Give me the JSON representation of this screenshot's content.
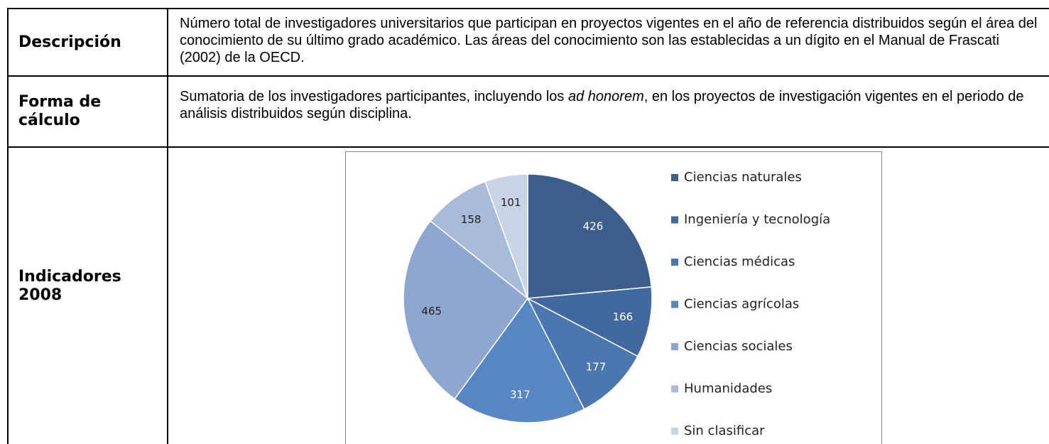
{
  "table": {
    "rows": [
      {
        "label": "Descripción",
        "text": "Número total de investigadores universitarios que participan en proyectos vigentes en el año de referencia distribuidos según el área del conocimiento de su último grado académico.  Las áreas del conocimiento son las establecidas a un dígito en el Manual de Frascati (2002) de la OECD."
      },
      {
        "label": "Forma de cálculo",
        "text": [
          "Sumatoria de los  investigadores participantes, incluyendo los ",
          "ad honorem",
          ", en los proyectos de investigación vigentes en el periodo de análisis distribuidos según disciplina."
        ]
      },
      {
        "label": "Indicadores 2008"
      }
    ]
  },
  "chart_data": {
    "type": "pie",
    "categories": [
      "Ciencias naturales",
      "Ingeniería y tecnología",
      "Ciencias médicas",
      "Ciencias agrícolas",
      "Ciencias sociales",
      "Humanidades",
      "Sin clasificar"
    ],
    "values": [
      426,
      166,
      177,
      317,
      465,
      158,
      101
    ],
    "colors": [
      "#3b5e8c",
      "#4169a0",
      "#4a77b0",
      "#5687c2",
      "#8ea7cf",
      "#a8bbd9",
      "#c9d3e6"
    ]
  }
}
